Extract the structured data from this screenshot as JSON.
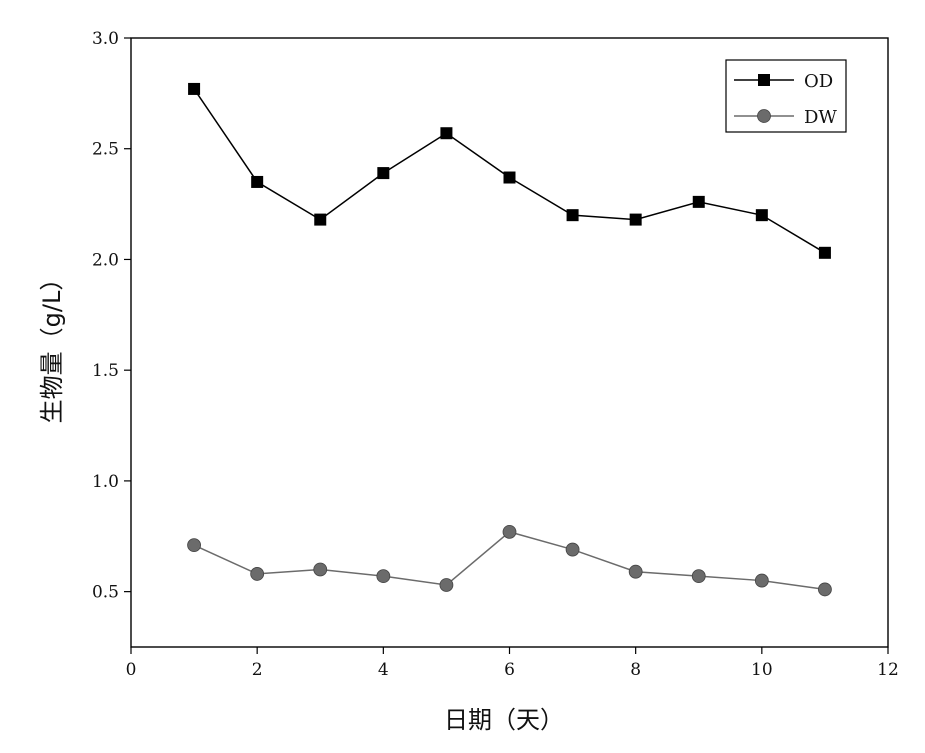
{
  "chart_data": {
    "type": "line",
    "xlabel": "日期（天）",
    "ylabel": "生物量（g/L）",
    "xlim": [
      0,
      12
    ],
    "ylim": [
      0.25,
      3.0
    ],
    "x_ticks": [
      "0",
      "2",
      "4",
      "6",
      "8",
      "10",
      "12"
    ],
    "y_ticks": [
      "0.5",
      "1.0",
      "1.5",
      "2.0",
      "2.5",
      "3.0"
    ],
    "x": [
      1,
      2,
      3,
      4,
      5,
      6,
      7,
      8,
      9,
      10,
      11
    ],
    "grid": false,
    "legend_position": "top-right",
    "series": [
      {
        "name": "OD",
        "marker": "square",
        "color": "#000000",
        "values": [
          2.77,
          2.35,
          2.18,
          2.39,
          2.57,
          2.37,
          2.2,
          2.18,
          2.26,
          2.2,
          2.03
        ]
      },
      {
        "name": "DW",
        "marker": "circle",
        "color": "#6b6b6b",
        "values": [
          0.71,
          0.58,
          0.6,
          0.57,
          0.53,
          0.77,
          0.69,
          0.59,
          0.57,
          0.55,
          0.51
        ]
      }
    ]
  }
}
